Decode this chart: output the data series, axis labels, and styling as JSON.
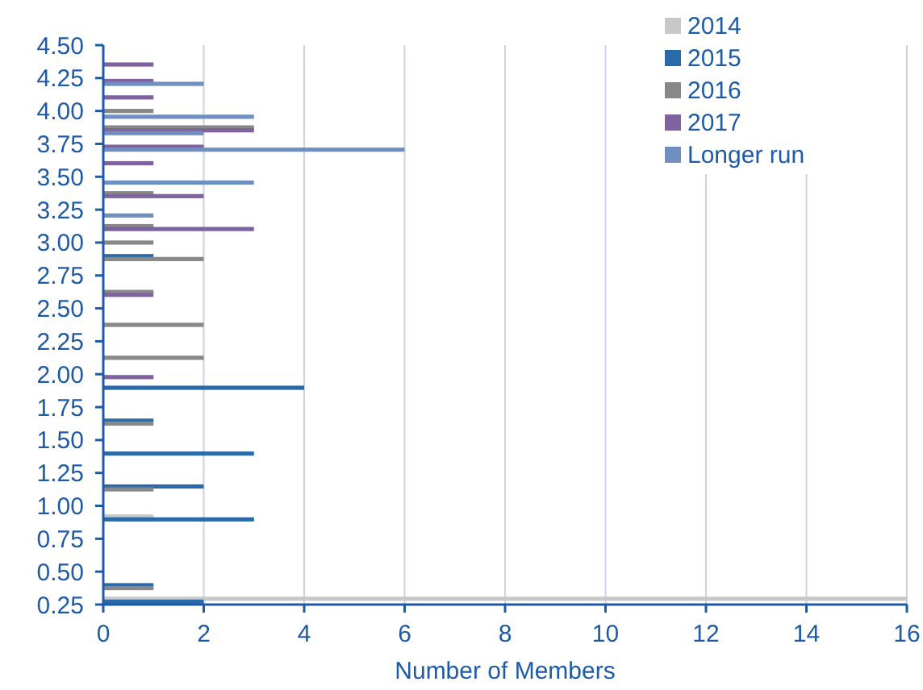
{
  "chart_data": {
    "type": "bar",
    "orientation": "horizontal",
    "xlabel": "Number of Members",
    "x": [
      0.25,
      0.375,
      0.875,
      1.125,
      1.375,
      1.625,
      1.875,
      2.0,
      2.125,
      2.375,
      2.625,
      2.875,
      3.0,
      3.125,
      3.25,
      3.375,
      3.5,
      3.625,
      3.75,
      3.875,
      4.0,
      4.125,
      4.25,
      4.375
    ],
    "series": [
      {
        "name": "2014",
        "color": "#c8c8c8",
        "values": [
          16,
          null,
          1,
          null,
          null,
          null,
          null,
          null,
          null,
          null,
          null,
          null,
          null,
          null,
          null,
          null,
          null,
          null,
          null,
          null,
          null,
          null,
          null,
          null
        ]
      },
      {
        "name": "2015",
        "color": "#2a6aa8",
        "values": [
          2,
          1,
          3,
          2,
          3,
          1,
          4,
          null,
          null,
          null,
          null,
          1,
          null,
          null,
          null,
          null,
          null,
          null,
          null,
          null,
          null,
          null,
          null,
          null
        ]
      },
      {
        "name": "2016",
        "color": "#888888",
        "values": [
          null,
          1,
          null,
          1,
          null,
          1,
          null,
          null,
          2,
          2,
          1,
          2,
          1,
          1,
          null,
          1,
          null,
          null,
          null,
          3,
          1,
          null,
          null,
          null
        ]
      },
      {
        "name": "2017",
        "color": "#7f62a0",
        "values": [
          null,
          null,
          null,
          null,
          null,
          null,
          null,
          1,
          null,
          null,
          1,
          null,
          null,
          3,
          null,
          2,
          null,
          1,
          2,
          3,
          null,
          1,
          1,
          1
        ]
      },
      {
        "name": "Longer run",
        "color": "#6f8fc0",
        "values": [
          null,
          null,
          null,
          null,
          null,
          null,
          null,
          null,
          null,
          null,
          null,
          null,
          null,
          null,
          1,
          null,
          3,
          null,
          6,
          2,
          3,
          null,
          2,
          null
        ]
      }
    ],
    "xlim": [
      0,
      16
    ],
    "xticks": [
      0,
      2,
      4,
      6,
      8,
      10,
      12,
      14,
      16
    ],
    "ylim": [
      0.25,
      4.5
    ],
    "yticks": [
      {
        "value": 0.25,
        "label": "0.25"
      },
      {
        "value": 0.5,
        "label": "0.50"
      },
      {
        "value": 0.75,
        "label": "0.75"
      },
      {
        "value": 1,
        "label": "1.00"
      },
      {
        "value": 1.25,
        "label": "1.25"
      },
      {
        "value": 1.5,
        "label": "1.50"
      },
      {
        "value": 1.75,
        "label": "1.75"
      },
      {
        "value": 2,
        "label": "2.00"
      },
      {
        "value": 2.25,
        "label": "2.25"
      },
      {
        "value": 2.5,
        "label": "2.50"
      },
      {
        "value": 2.75,
        "label": "2.75"
      },
      {
        "value": 3,
        "label": "3.00"
      },
      {
        "value": 3.25,
        "label": "3.25"
      },
      {
        "value": 3.5,
        "label": "3.50"
      },
      {
        "value": 3.75,
        "label": "3.75"
      },
      {
        "value": 4,
        "label": "4.00"
      },
      {
        "value": 4.25,
        "label": "4.25"
      },
      {
        "value": 4.5,
        "label": "4.50"
      }
    ],
    "grid": "x",
    "legend": "top right"
  }
}
